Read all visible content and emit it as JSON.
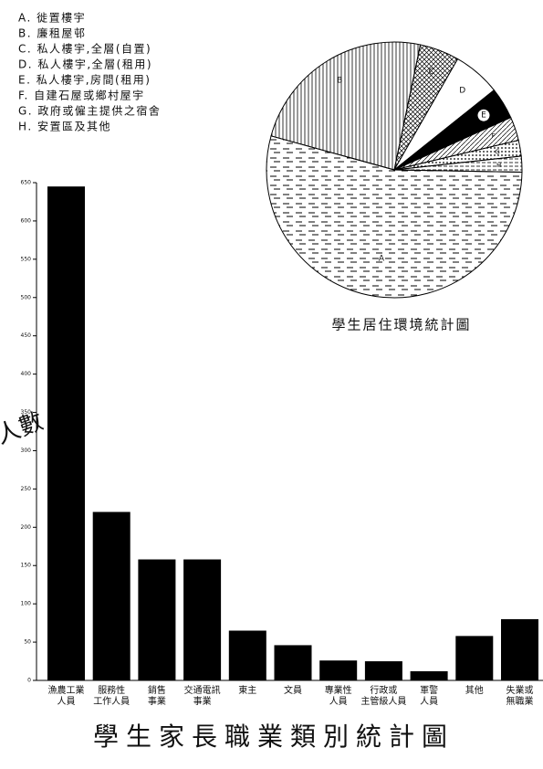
{
  "chart_data": [
    {
      "type": "pie",
      "title": "學生居住環境統計圖",
      "categories": [
        "A. 徙置樓宇",
        "B. 廉租屋邨",
        "C. 私人樓宇,全層(自置)",
        "D. 私人樓宇,全層(租用)",
        "E. 私人樓宇,房間(租用)",
        "F. 自建石屋或鄉村屋宇",
        "G. 政府或僱主提供之宿舍",
        "H. 安置區及其他"
      ],
      "slice_labels": [
        "A",
        "B",
        "C",
        "D",
        "E",
        "F",
        "G",
        "H"
      ],
      "values": [
        54,
        24,
        5,
        6,
        4,
        3,
        2,
        2
      ]
    },
    {
      "type": "bar",
      "title": "學生家長職業類別統計圖",
      "y_label": "人數",
      "categories": [
        "漁農工業\n人員",
        "服務性\n工作人員",
        "銷售\n事業",
        "交通電訊\n事業",
        "東主",
        "文員",
        "專業性\n人員",
        "行政或\n主管級人員",
        "軍警\n人員",
        "其他",
        "失業或\n無職業"
      ],
      "values": [
        645,
        220,
        158,
        158,
        65,
        46,
        26,
        25,
        12,
        58,
        80
      ],
      "color": "#000000",
      "ylim": [
        0,
        650
      ],
      "yticks": [
        0,
        50,
        100,
        150,
        200,
        250,
        300,
        350,
        400,
        450,
        500,
        550,
        600,
        650
      ]
    }
  ]
}
